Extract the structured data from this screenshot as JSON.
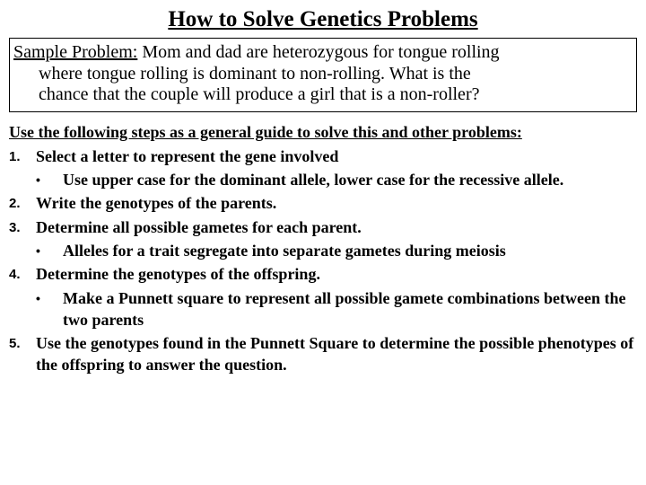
{
  "title": "How to Solve Genetics Problems",
  "sample": {
    "label": "Sample Problem:",
    "line1_rest": "  Mom and dad are heterozygous for tongue rolling",
    "line2": "where tongue rolling is dominant to non-rolling. What is the",
    "line3": "chance that the couple will produce a girl that is a non-roller?"
  },
  "guide_heading": "Use the following steps as a general guide to solve this and other problems:",
  "steps": [
    {
      "num": "1.",
      "text": "Select a letter to represent the gene involved",
      "subs": [
        "Use upper case for the dominant allele, lower case for the recessive allele."
      ]
    },
    {
      "num": "2.",
      "text": "Write the genotypes of the parents.",
      "subs": []
    },
    {
      "num": "3.",
      "text": "Determine all possible gametes for each parent.",
      "subs": [
        "Alleles for a trait segregate into separate gametes during meiosis"
      ]
    },
    {
      "num": "4.",
      "text": "Determine the genotypes of the offspring.",
      "subs": [
        "Make a Punnett square to represent all possible gamete combinations between the two parents"
      ]
    },
    {
      "num": "5.",
      "text": "Use the genotypes found in the Punnett Square to determine the possible phenotypes of the offspring to answer the question.",
      "subs": []
    }
  ],
  "bullet_char": "•"
}
